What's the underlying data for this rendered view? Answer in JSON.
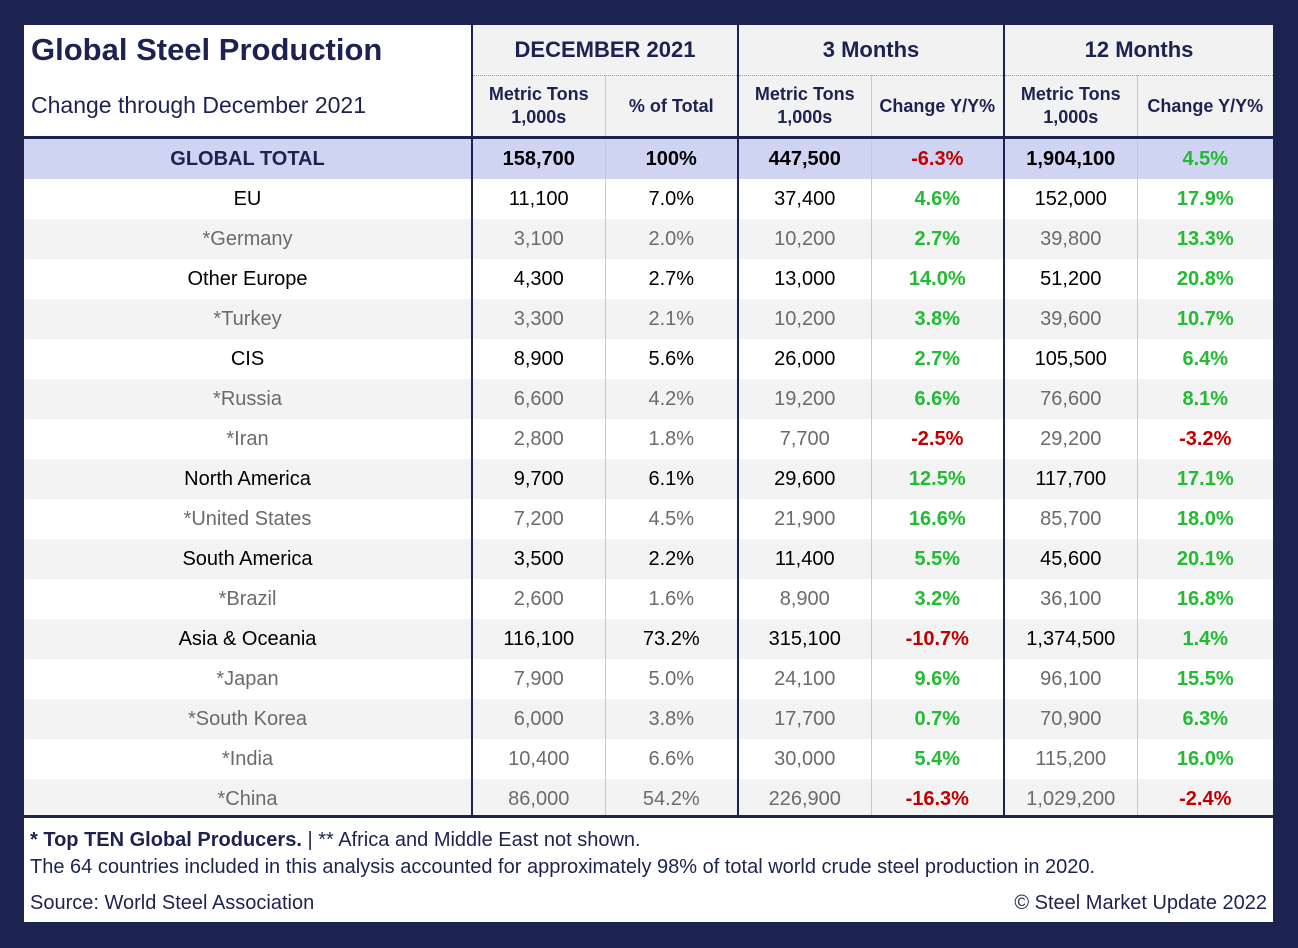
{
  "chart_data": {
    "type": "table",
    "title": "Global Steel Production",
    "subtitle": "Change through December 2021",
    "group_headers": [
      "DECEMBER 2021",
      "3 Months",
      "12 Months"
    ],
    "sub_headers": [
      "Metric Tons 1,000s",
      "% of Total",
      "Metric Tons 1,000s",
      "Change Y/Y%",
      "Metric Tons 1,000s",
      "Change Y/Y%"
    ],
    "rows": [
      {
        "region": "GLOBAL TOTAL",
        "level": "total",
        "dec": "158,700",
        "pct": "100%",
        "m3": "447,500",
        "m3chg": "-6.3%",
        "m12": "1,904,100",
        "m12chg": "4.5%"
      },
      {
        "region": "EU",
        "level": "region",
        "dec": "11,100",
        "pct": "7.0%",
        "m3": "37,400",
        "m3chg": "4.6%",
        "m12": "152,000",
        "m12chg": "17.9%"
      },
      {
        "region": "*Germany",
        "level": "country",
        "dec": "3,100",
        "pct": "2.0%",
        "m3": "10,200",
        "m3chg": "2.7%",
        "m12": "39,800",
        "m12chg": "13.3%"
      },
      {
        "region": "Other Europe",
        "level": "region",
        "dec": "4,300",
        "pct": "2.7%",
        "m3": "13,000",
        "m3chg": "14.0%",
        "m12": "51,200",
        "m12chg": "20.8%"
      },
      {
        "region": "*Turkey",
        "level": "country",
        "dec": "3,300",
        "pct": "2.1%",
        "m3": "10,200",
        "m3chg": "3.8%",
        "m12": "39,600",
        "m12chg": "10.7%"
      },
      {
        "region": "CIS",
        "level": "region",
        "dec": "8,900",
        "pct": "5.6%",
        "m3": "26,000",
        "m3chg": "2.7%",
        "m12": "105,500",
        "m12chg": "6.4%"
      },
      {
        "region": "*Russia",
        "level": "country",
        "dec": "6,600",
        "pct": "4.2%",
        "m3": "19,200",
        "m3chg": "6.6%",
        "m12": "76,600",
        "m12chg": "8.1%"
      },
      {
        "region": "*Iran",
        "level": "country",
        "dec": "2,800",
        "pct": "1.8%",
        "m3": "7,700",
        "m3chg": "-2.5%",
        "m12": "29,200",
        "m12chg": "-3.2%"
      },
      {
        "region": "North America",
        "level": "region",
        "dec": "9,700",
        "pct": "6.1%",
        "m3": "29,600",
        "m3chg": "12.5%",
        "m12": "117,700",
        "m12chg": "17.1%"
      },
      {
        "region": "*United States",
        "level": "country",
        "dec": "7,200",
        "pct": "4.5%",
        "m3": "21,900",
        "m3chg": "16.6%",
        "m12": "85,700",
        "m12chg": "18.0%"
      },
      {
        "region": "South America",
        "level": "region",
        "dec": "3,500",
        "pct": "2.2%",
        "m3": "11,400",
        "m3chg": "5.5%",
        "m12": "45,600",
        "m12chg": "20.1%"
      },
      {
        "region": "*Brazil",
        "level": "country",
        "dec": "2,600",
        "pct": "1.6%",
        "m3": "8,900",
        "m3chg": "3.2%",
        "m12": "36,100",
        "m12chg": "16.8%"
      },
      {
        "region": "Asia & Oceania",
        "level": "region",
        "dec": "116,100",
        "pct": "73.2%",
        "m3": "315,100",
        "m3chg": "-10.7%",
        "m12": "1,374,500",
        "m12chg": "1.4%"
      },
      {
        "region": "*Japan",
        "level": "country",
        "dec": "7,900",
        "pct": "5.0%",
        "m3": "24,100",
        "m3chg": "9.6%",
        "m12": "96,100",
        "m12chg": "15.5%"
      },
      {
        "region": "*South Korea",
        "level": "country",
        "dec": "6,000",
        "pct": "3.8%",
        "m3": "17,700",
        "m3chg": "0.7%",
        "m12": "70,900",
        "m12chg": "6.3%"
      },
      {
        "region": "*India",
        "level": "country",
        "dec": "10,400",
        "pct": "6.6%",
        "m3": "30,000",
        "m3chg": "5.4%",
        "m12": "115,200",
        "m12chg": "16.0%"
      },
      {
        "region": "*China",
        "level": "country",
        "dec": "86,000",
        "pct": "54.2%",
        "m3": "226,900",
        "m3chg": "-16.3%",
        "m12": "1,029,200",
        "m12chg": "-2.4%"
      }
    ]
  },
  "footer": {
    "note_bold": "* Top TEN Global Producers.",
    "note_rest": " | ** Africa and Middle East not shown.",
    "coverage": "The 64 countries included in this analysis accounted for approximately 98% of total world crude steel production in 2020.",
    "source": "Source: World Steel Association",
    "copyright": "© Steel Market Update 2022"
  },
  "colors": {
    "navy": "#1c2350",
    "total_row": "#d0d4f3",
    "positive": "#22bb33",
    "negative": "#c00000"
  }
}
